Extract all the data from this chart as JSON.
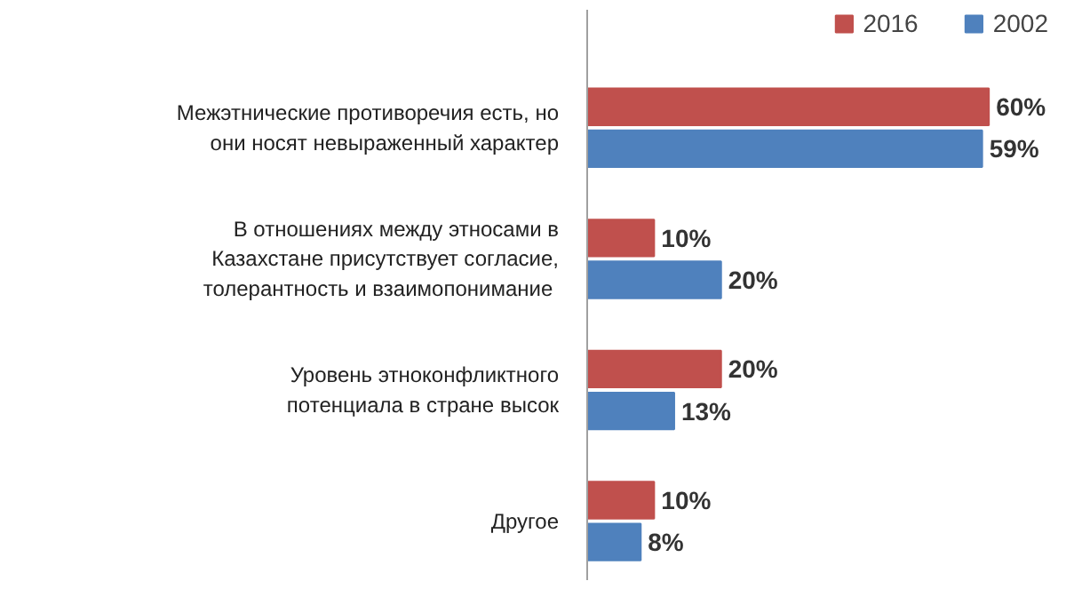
{
  "chart_data": {
    "type": "bar",
    "orientation": "horizontal",
    "categories": [
      "Межэтнические противоречия есть, но\nони носят невыраженный характер",
      "В отношениях между этносами в\nКазахстане присутствует согласие,\nтолерантность  и взаимопонимание",
      "Уровень этноконфликтного\nпотенциала в стране высок",
      "Другое"
    ],
    "series": [
      {
        "name": "2016",
        "color": "#c0504d",
        "values": [
          60,
          10,
          20,
          10
        ],
        "value_labels": [
          "60%",
          "10%",
          "20%",
          "10%"
        ]
      },
      {
        "name": "2002",
        "color": "#4f81bd",
        "values": [
          59,
          20,
          13,
          8
        ],
        "value_labels": [
          "59%",
          "20%",
          "13%",
          "8%"
        ]
      }
    ],
    "legend": "top right",
    "grid": false
  }
}
